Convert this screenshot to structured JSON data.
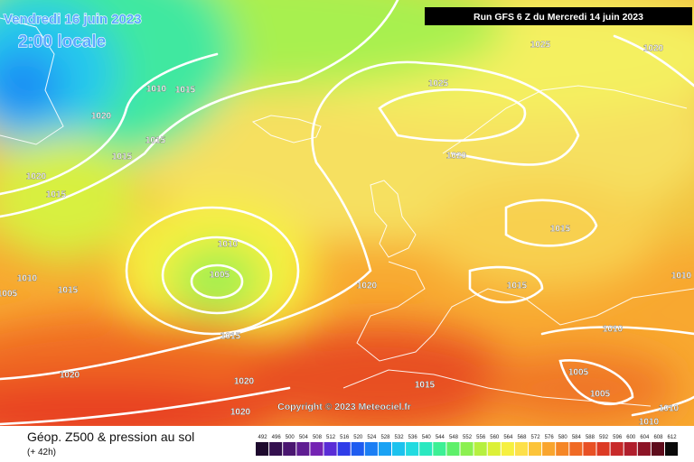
{
  "header": {
    "date": "Vendredi 16 juin 2023",
    "time": "2:00 locale",
    "run": "Run GFS 6 Z du Mercredi 14 juin 2023"
  },
  "isobar_labels": [
    "1010",
    "1015",
    "1020",
    "1015",
    "1015",
    "1020",
    "1015",
    "1010",
    "1005",
    "1015",
    "1010",
    "1005",
    "1015",
    "1020",
    "1020",
    "1020",
    "1025",
    "1020",
    "1025",
    "1020",
    "1015",
    "1020",
    "1015",
    "1010",
    "1010",
    "1005",
    "1005",
    "1015",
    "1010",
    "1010"
  ],
  "copyright": "Copyright © 2023 Meteociel.fr",
  "legend": {
    "title": "Géop. Z500 & pression au sol",
    "lead": "(+ 42h)",
    "scale": [
      492,
      496,
      500,
      504,
      508,
      512,
      516,
      520,
      524,
      528,
      532,
      536,
      540,
      544,
      548,
      552,
      556,
      560,
      564,
      568,
      572,
      576,
      580,
      584,
      588,
      592,
      596,
      600,
      604,
      608,
      612
    ],
    "colors": [
      "#1e0a2e",
      "#34104f",
      "#4a1670",
      "#5f1d92",
      "#7423b3",
      "#5a2cd6",
      "#2f3ce8",
      "#1f5cf0",
      "#1b7ef4",
      "#1aa2f4",
      "#1cc2ee",
      "#22dbe0",
      "#2ae8c0",
      "#3cf095",
      "#5ef06a",
      "#8cf050",
      "#b6f040",
      "#dcf038",
      "#f6f040",
      "#fde04a",
      "#fcc43a",
      "#f9a52e",
      "#f58626",
      "#f06a24",
      "#e85024",
      "#dc3a24",
      "#c82a2a",
      "#b01e2c",
      "#8c1426",
      "#5e0c1c",
      "#0a0a0a"
    ]
  }
}
